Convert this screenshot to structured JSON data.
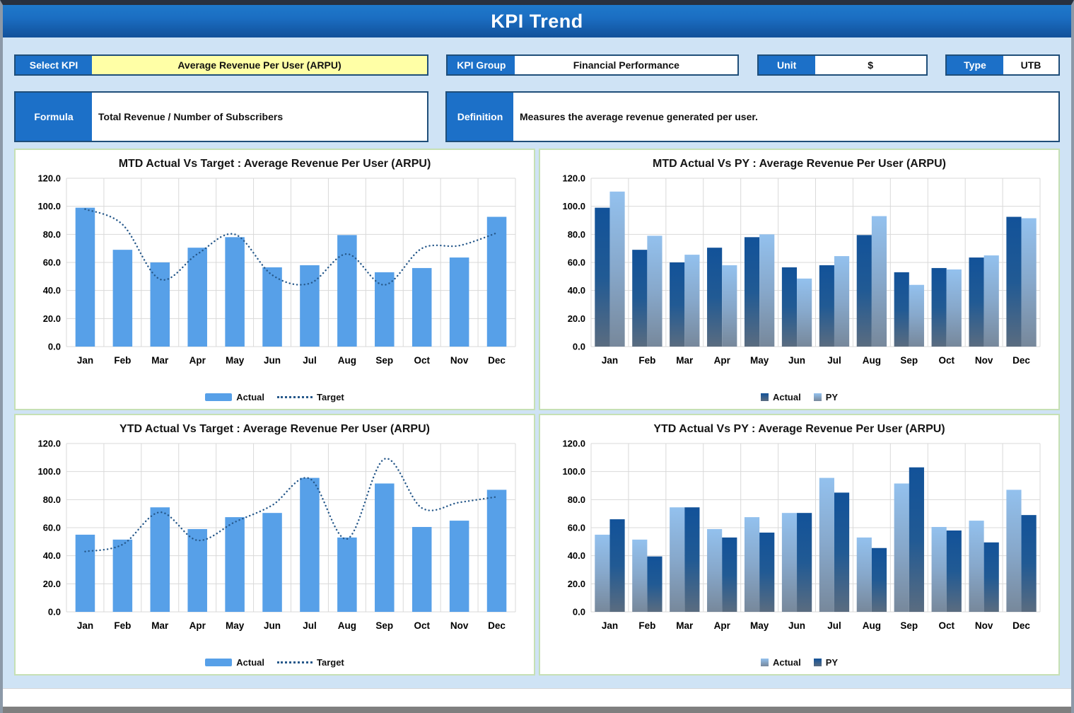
{
  "window": {
    "title": "KPI Trend"
  },
  "controls": {
    "select_kpi": {
      "label": "Select KPI",
      "value": "Average Revenue Per User (ARPU)"
    },
    "kpi_group": {
      "label": "KPI Group",
      "value": "Financial Performance"
    },
    "unit": {
      "label": "Unit",
      "value": "$"
    },
    "type": {
      "label": "Type",
      "value": "UTB"
    },
    "formula": {
      "label": "Formula",
      "value": "Total Revenue / Number of Subscribers"
    },
    "definition": {
      "label": "Definition",
      "value": "Measures the average revenue generated per user."
    }
  },
  "colors": {
    "header_blue": "#1B6EC2",
    "label_blue": "#1C70C8",
    "select_yellow": "#FFFFA6",
    "border_navy": "#1F4E79",
    "page_bg": "#CFE3F5",
    "panel_border": "#C6E0B4",
    "grid": "#D9D9D9",
    "bar_flat_blue": "#57A0E8",
    "target_line_navy": "#26588A",
    "bar_dark_top": "#125299",
    "bar_dark_mid": "#215A94",
    "bar_dark_bottom": "#5A6C80",
    "bar_light_top": "#93C1EE",
    "bar_light_mid": "#87A8CB",
    "bar_light_bottom": "#77889B"
  },
  "chart_data": [
    {
      "type": "bar",
      "title": "MTD Actual Vs Target : Average Revenue Per User (ARPU)",
      "categories": [
        "Jan",
        "Feb",
        "Mar",
        "Apr",
        "May",
        "Jun",
        "Jul",
        "Aug",
        "Sep",
        "Oct",
        "Nov",
        "Dec"
      ],
      "series": [
        {
          "name": "Actual",
          "kind": "bar",
          "style": "flat",
          "values": [
            99,
            69,
            60,
            70.5,
            78,
            56.5,
            58,
            79.5,
            53,
            56,
            63.5,
            92.5
          ]
        },
        {
          "name": "Target",
          "kind": "line",
          "style": "line",
          "values": [
            98,
            87,
            48,
            66,
            80,
            51,
            45,
            66,
            44,
            70,
            72,
            81
          ]
        }
      ],
      "ylim": [
        0,
        120
      ],
      "ytick_step": 20,
      "grid": true,
      "legend_position": "bottom"
    },
    {
      "type": "bar",
      "title": "MTD Actual Vs PY : Average Revenue Per User (ARPU)",
      "categories": [
        "Jan",
        "Feb",
        "Mar",
        "Apr",
        "May",
        "Jun",
        "Jul",
        "Aug",
        "Sep",
        "Oct",
        "Nov",
        "Dec"
      ],
      "series": [
        {
          "name": "Actual",
          "kind": "bar",
          "style": "dark",
          "values": [
            99,
            69,
            60,
            70.5,
            78,
            56.5,
            58,
            79.5,
            53,
            56,
            63.5,
            92.5
          ]
        },
        {
          "name": "PY",
          "kind": "bar",
          "style": "light",
          "values": [
            110.5,
            79,
            65.5,
            58,
            80,
            48.5,
            64.5,
            93,
            44,
            55,
            65,
            91.5
          ]
        }
      ],
      "ylim": [
        0,
        120
      ],
      "ytick_step": 20,
      "grid": true,
      "legend_position": "bottom"
    },
    {
      "type": "bar",
      "title": "YTD Actual Vs Target : Average Revenue Per User (ARPU)",
      "categories": [
        "Jan",
        "Feb",
        "Mar",
        "Apr",
        "May",
        "Jun",
        "Jul",
        "Aug",
        "Sep",
        "Oct",
        "Nov",
        "Dec"
      ],
      "series": [
        {
          "name": "Actual",
          "kind": "bar",
          "style": "flat",
          "values": [
            55,
            51.5,
            74.5,
            59,
            67.5,
            70.5,
            95.5,
            53,
            91.5,
            60.5,
            65,
            87
          ]
        },
        {
          "name": "Target",
          "kind": "line",
          "style": "line",
          "values": [
            43,
            48,
            71,
            51,
            64,
            76,
            95,
            52,
            109,
            74,
            78,
            82
          ]
        }
      ],
      "ylim": [
        0,
        120
      ],
      "ytick_step": 20,
      "grid": true,
      "legend_position": "bottom"
    },
    {
      "type": "bar",
      "title": "YTD Actual Vs PY : Average Revenue Per User (ARPU)",
      "categories": [
        "Jan",
        "Feb",
        "Mar",
        "Apr",
        "May",
        "Jun",
        "Jul",
        "Aug",
        "Sep",
        "Oct",
        "Nov",
        "Dec"
      ],
      "series": [
        {
          "name": "Actual",
          "kind": "bar",
          "style": "light",
          "values": [
            55,
            51.5,
            74.5,
            59,
            67.5,
            70.5,
            95.5,
            53,
            91.5,
            60.5,
            65,
            87
          ]
        },
        {
          "name": "PY",
          "kind": "bar",
          "style": "dark",
          "values": [
            66,
            39.5,
            74.5,
            53,
            56.5,
            70.5,
            85,
            45.5,
            103,
            58,
            49.5,
            69
          ]
        }
      ],
      "ylim": [
        0,
        120
      ],
      "ytick_step": 20,
      "grid": true,
      "legend_position": "bottom"
    }
  ]
}
